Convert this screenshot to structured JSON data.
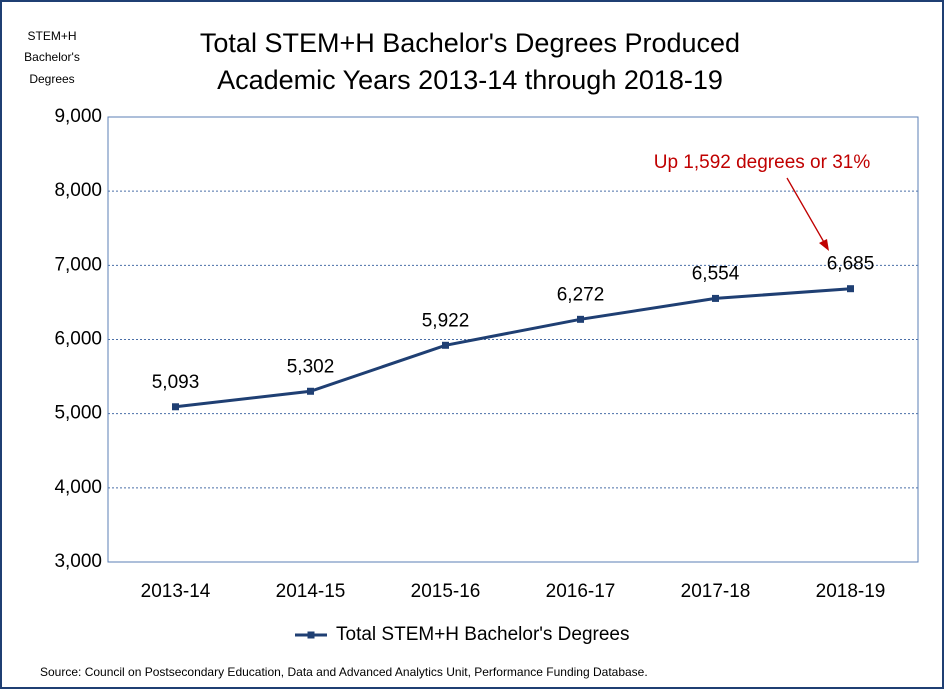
{
  "chart_data": {
    "type": "line",
    "title": "Total STEM+H Bachelor's Degrees Produced",
    "subtitle": "Academic Years 2013-14 through 2018-19",
    "y_label": [
      "STEM+H",
      "Bachelor's",
      "Degrees"
    ],
    "categories": [
      "2013-14",
      "2014-15",
      "2015-16",
      "2016-17",
      "2017-18",
      "2018-19"
    ],
    "series": [
      {
        "name": "Total STEM+H Bachelor's Degrees",
        "color": "#1f3f73",
        "values": [
          5093,
          5302,
          5922,
          6272,
          6554,
          6685
        ],
        "value_labels": [
          "5,093",
          "5,302",
          "5,922",
          "6,272",
          "6,554",
          "6,685"
        ]
      }
    ],
    "ylim": [
      3000,
      9000
    ],
    "yticks": [
      {
        "value": 3000,
        "label": "3,000"
      },
      {
        "value": 4000,
        "label": "4,000"
      },
      {
        "value": 5000,
        "label": "5,000"
      },
      {
        "value": 6000,
        "label": "6,000"
      },
      {
        "value": 7000,
        "label": "7,000"
      },
      {
        "value": 8000,
        "label": "8,000"
      },
      {
        "value": 9000,
        "label": "9,000"
      }
    ],
    "grid": true,
    "legend": "bottom",
    "annotation": "Up 1,592 degrees or 31%",
    "source": "Source:  Council on Postsecondary Education, Data and Advanced Analytics Unit, Performance Funding Database."
  }
}
